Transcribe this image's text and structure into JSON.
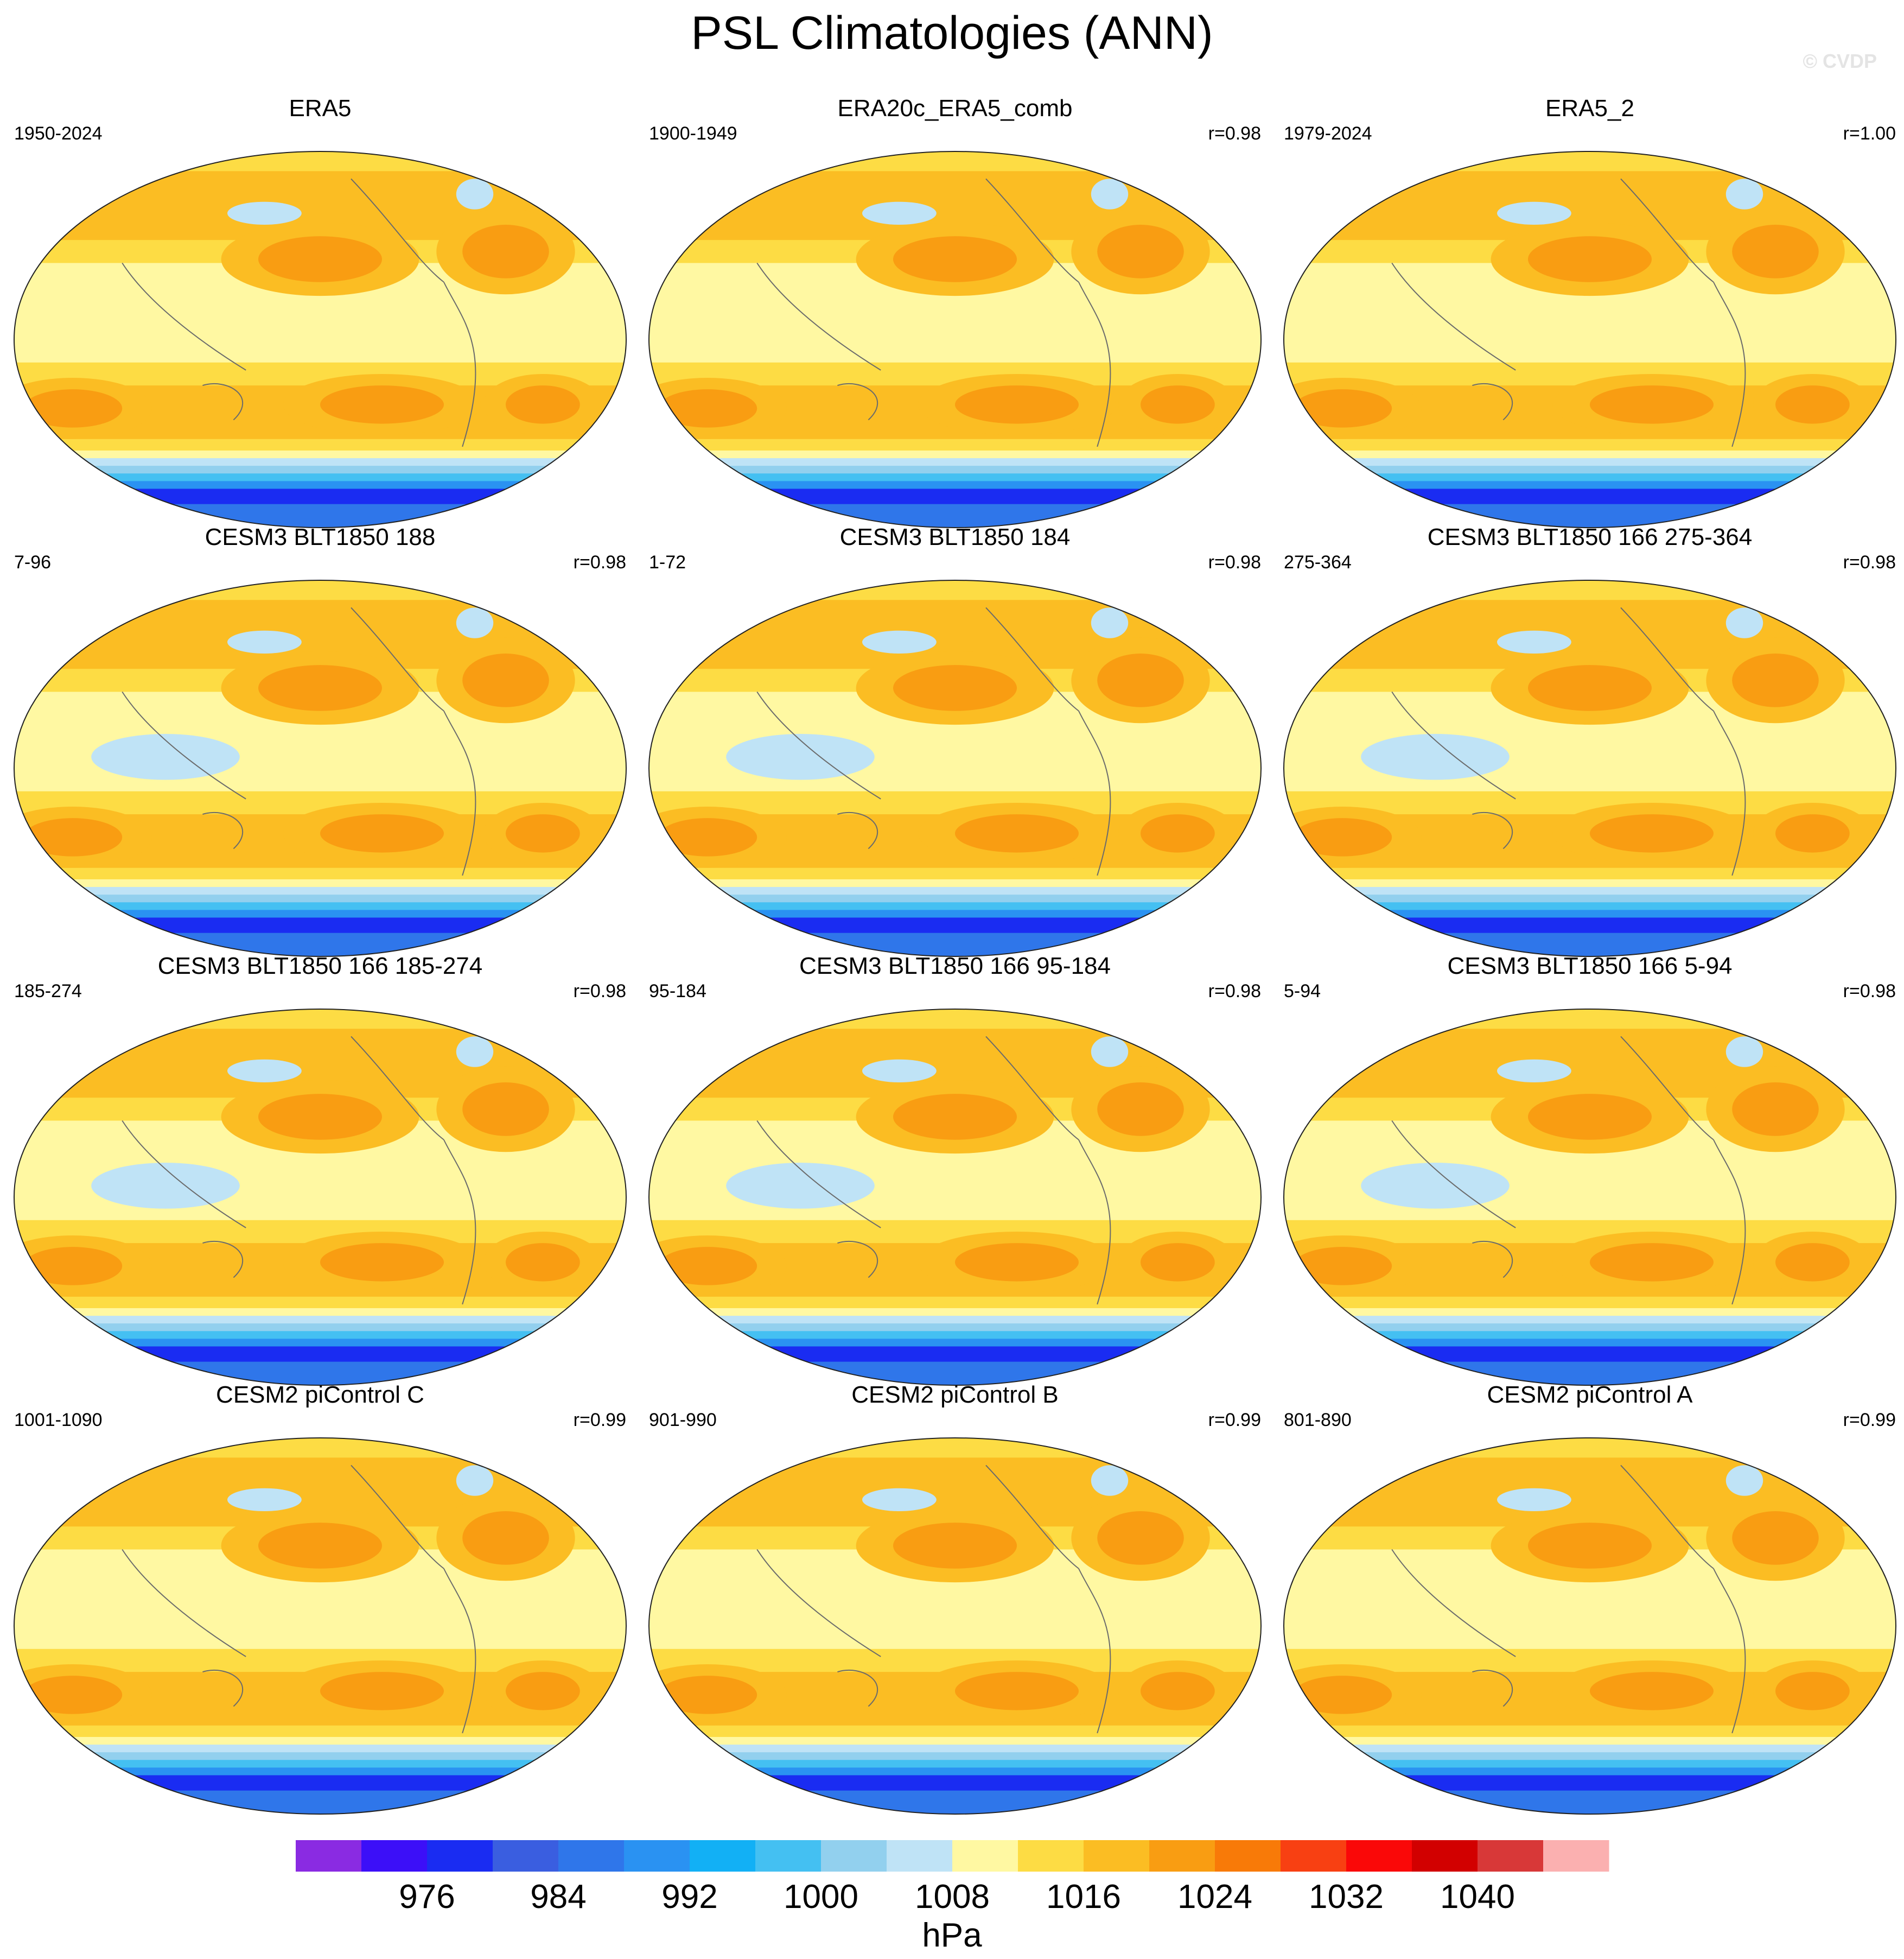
{
  "title": "PSL Climatologies (ANN)",
  "watermark": "© CVDP",
  "panels": [
    {
      "title": "ERA5",
      "years": "1950-2024",
      "r": ""
    },
    {
      "title": "ERA20c_ERA5_comb",
      "years": "1900-1949",
      "r": "r=0.98"
    },
    {
      "title": "ERA5_2",
      "years": "1979-2024",
      "r": "r=1.00"
    },
    {
      "title": "CESM3 BLT1850 188",
      "years": "7-96",
      "r": "r=0.98"
    },
    {
      "title": "CESM3 BLT1850 184",
      "years": "1-72",
      "r": "r=0.98"
    },
    {
      "title": "CESM3 BLT1850 166 275-364",
      "years": "275-364",
      "r": "r=0.98"
    },
    {
      "title": "CESM3 BLT1850 166 185-274",
      "years": "185-274",
      "r": "r=0.98"
    },
    {
      "title": "CESM3 BLT1850 166 95-184",
      "years": "95-184",
      "r": "r=0.98"
    },
    {
      "title": "CESM3 BLT1850 166 5-94",
      "years": "5-94",
      "r": "r=0.98"
    },
    {
      "title": "CESM2 piControl C",
      "years": "1001-1090",
      "r": "r=0.99"
    },
    {
      "title": "CESM2 piControl B",
      "years": "901-990",
      "r": "r=0.99"
    },
    {
      "title": "CESM2 piControl A",
      "years": "801-890",
      "r": "r=0.99"
    }
  ],
  "colorbar": {
    "unit": "hPa",
    "colors": [
      "#8a2be2",
      "#3c0ff8",
      "#1a2cf2",
      "#3a5ee0",
      "#2f76ea",
      "#2a92f2",
      "#12b0f5",
      "#44c0f2",
      "#92d0ee",
      "#bfe3f6",
      "#fff8a2",
      "#fddc44",
      "#fbbd23",
      "#f99d12",
      "#f87a08",
      "#f84012",
      "#fa0808",
      "#d20000",
      "#d83838",
      "#fbb0b0"
    ],
    "tick_labels": [
      "976",
      "984",
      "992",
      "1000",
      "1008",
      "1016",
      "1024",
      "1032",
      "1040"
    ]
  },
  "chart_data": {
    "type": "heatmap",
    "title": "PSL Climatologies (ANN)",
    "projection": "Robinson",
    "variable": "PSL",
    "unit": "hPa",
    "levels": [
      972,
      976,
      980,
      984,
      988,
      992,
      996,
      1000,
      1004,
      1008,
      1012,
      1016,
      1020,
      1024,
      1028,
      1032,
      1036,
      1040,
      1044
    ],
    "panels": [
      {
        "title": "ERA5",
        "period": "1950-2024",
        "r": null
      },
      {
        "title": "ERA20c_ERA5_comb",
        "period": "1900-1949",
        "r": 0.98
      },
      {
        "title": "ERA5_2",
        "period": "1979-2024",
        "r": 1.0
      },
      {
        "title": "CESM3 BLT1850 188",
        "period": "7-96",
        "r": 0.98
      },
      {
        "title": "CESM3 BLT1850 184",
        "period": "1-72",
        "r": 0.98
      },
      {
        "title": "CESM3 BLT1850 166 275-364",
        "period": "275-364",
        "r": 0.98
      },
      {
        "title": "CESM3 BLT1850 166 185-274",
        "period": "185-274",
        "r": 0.98
      },
      {
        "title": "CESM3 BLT1850 166 95-184",
        "period": "95-184",
        "r": 0.98
      },
      {
        "title": "CESM3 BLT1850 166 5-94",
        "period": "5-94",
        "r": 0.98
      },
      {
        "title": "CESM2 piControl C",
        "period": "1001-1090",
        "r": 0.99
      },
      {
        "title": "CESM2 piControl B",
        "period": "901-990",
        "r": 0.99
      },
      {
        "title": "CESM2 piControl A",
        "period": "801-890",
        "r": 0.99
      }
    ]
  }
}
